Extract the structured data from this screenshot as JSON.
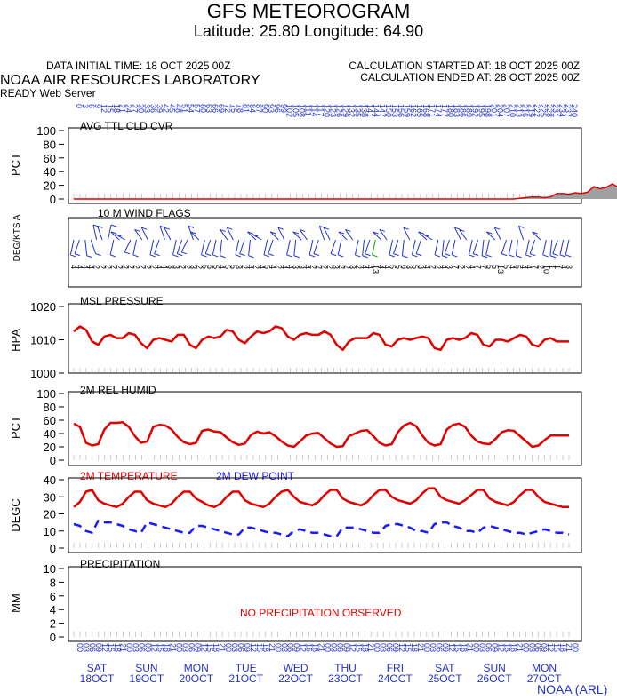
{
  "header": {
    "title": "GFS METEOROGRAM",
    "subtitle": "Latitude: 25.80 Longitude:  64.90",
    "data_initial_time": "DATA INITIAL TIME: 18 OCT 2025 00Z",
    "calc_started": "CALCULATION STARTED AT: 18 OCT 2025 00Z",
    "calc_ended": "CALCULATION ENDED AT: 28 OCT 2025 00Z",
    "lab": "NOAA AIR RESOURCES LABORATORY",
    "server": "READY Web Server",
    "credit": "NOAA (ARL)"
  },
  "colors": {
    "temp": "#e00000",
    "dew": "#1a1aff",
    "axis_text": "#2233cc"
  },
  "time_axis": {
    "hour_labels": [
      "0",
      "3",
      "6",
      "9",
      "12",
      "15",
      "18",
      "21",
      "24",
      "27",
      "30",
      "33",
      "36",
      "39",
      "42",
      "45",
      "48",
      "51",
      "54",
      "57",
      "60",
      "63",
      "66",
      "69",
      "72",
      "75",
      "78",
      "81",
      "84",
      "87",
      "90",
      "93",
      "96",
      "99",
      "102",
      "105",
      "108",
      "111",
      "114",
      "117",
      "120",
      "123",
      "126",
      "129",
      "132",
      "135",
      "138",
      "141",
      "144",
      "147",
      "150",
      "153",
      "156",
      "159",
      "162",
      "165",
      "168",
      "171",
      "174",
      "177",
      "180",
      "183",
      "186",
      "189",
      "192",
      "195",
      "198",
      "201",
      "204",
      "207",
      "210",
      "213",
      "216",
      "219",
      "222",
      "225",
      "228",
      "231",
      "234",
      "237",
      "240"
    ],
    "utc_labels": [
      "00",
      "03",
      "06",
      "09",
      "12",
      "15",
      "18",
      "21"
    ],
    "days": [
      {
        "dow": "SAT",
        "date": "18OCT"
      },
      {
        "dow": "SUN",
        "date": "19OCT"
      },
      {
        "dow": "MON",
        "date": "20OCT"
      },
      {
        "dow": "TUE",
        "date": "21OCT"
      },
      {
        "dow": "WED",
        "date": "22OCT"
      },
      {
        "dow": "THU",
        "date": "23OCT"
      },
      {
        "dow": "FRI",
        "date": "24OCT"
      },
      {
        "dow": "SAT",
        "date": "25OCT"
      },
      {
        "dow": "SUN",
        "date": "26OCT"
      },
      {
        "dow": "MON",
        "date": "27OCT"
      }
    ]
  },
  "chart_data": [
    {
      "type": "area",
      "title": "AVG TTL CLD CVR",
      "ylabel": "PCT",
      "ylim": [
        0,
        100
      ],
      "yticks": [
        "100",
        "80",
        "60",
        "40",
        "20",
        "0"
      ],
      "x_hours_step": 3,
      "values": [
        0,
        0,
        0,
        0,
        0,
        0,
        0,
        0,
        0,
        0,
        0,
        0,
        0,
        0,
        0,
        0,
        0,
        0,
        0,
        0,
        0,
        0,
        0,
        0,
        0,
        0,
        0,
        0,
        0,
        0,
        0,
        0,
        0,
        0,
        0,
        0,
        0,
        0,
        0,
        0,
        0,
        0,
        0,
        0,
        0,
        0,
        0,
        0,
        0,
        0,
        0,
        0,
        0,
        0,
        0,
        0,
        0,
        0,
        0,
        0,
        0,
        0,
        0,
        0,
        0,
        0,
        0,
        0,
        0,
        0,
        0,
        0,
        1,
        2,
        3,
        3,
        2,
        3,
        8,
        8,
        7,
        9,
        8,
        10,
        18,
        15,
        17,
        22,
        17
      ]
    },
    {
      "type": "wind_barbs",
      "title": "10 M  WIND FLAGS",
      "ylabel": "DEG/KTS  A",
      "speed_labels": [
        "4",
        "4",
        "4",
        "4",
        "2",
        "2",
        "2",
        "2",
        "2",
        "2",
        "2",
        "2",
        "2",
        "2",
        "2",
        "4",
        "4",
        "3",
        "3",
        "2",
        "2",
        "3",
        "2",
        "5",
        "5",
        "5",
        "4",
        "5",
        "5",
        "3",
        "2",
        "4",
        "2",
        "4",
        "5",
        "4",
        "2",
        "4",
        "4",
        "3",
        "3",
        "4",
        "2",
        "2",
        "2",
        "2",
        "3",
        "2",
        "2",
        "3",
        "2",
        "4",
        "4",
        "13",
        "4",
        "4",
        "5",
        "5",
        "6",
        "3",
        "5",
        "3",
        "4",
        "2",
        "2",
        "4",
        "3",
        "7",
        "2",
        "2",
        "4",
        "7",
        "7",
        "5",
        "5",
        "13",
        "5",
        "4",
        "5",
        "4",
        "4",
        "7",
        "2",
        "10",
        "1",
        "1",
        "4",
        "3"
      ]
    },
    {
      "type": "line",
      "title": "MSL PRESSURE",
      "ylabel": "HPA",
      "ylim": [
        1000,
        1020
      ],
      "yticks": [
        "1020",
        "1010",
        "1000"
      ],
      "x_hours_step": 3,
      "series": [
        {
          "values": [
            1012.5,
            1014,
            1013,
            1009.5,
            1008.5,
            1011,
            1011.5,
            1010.5,
            1010.5,
            1012,
            1011.5,
            1009,
            1007.5,
            1010,
            1010.5,
            1010,
            1009.5,
            1011.5,
            1011.5,
            1008.5,
            1007.5,
            1010,
            1011,
            1010.5,
            1011,
            1013,
            1012.5,
            1010,
            1009,
            1011,
            1012.5,
            1012,
            1012.5,
            1014,
            1013.5,
            1011,
            1010,
            1011.5,
            1012,
            1011.5,
            1011.5,
            1012.5,
            1011.5,
            1008.5,
            1007,
            1009.5,
            1010.5,
            1010.5,
            1010.5,
            1012,
            1011.5,
            1008.5,
            1008,
            1010,
            1010.5,
            1010,
            1010.5,
            1011,
            1010.5,
            1007.5,
            1007,
            1010,
            1010.5,
            1010,
            1010.5,
            1012,
            1011.5,
            1008.5,
            1008,
            1010,
            1010,
            1009.5,
            1010.5,
            1011.5,
            1011,
            1008.5,
            1008,
            1010,
            1010.5,
            1009.5,
            1009.5,
            1009.5
          ]
        }
      ]
    },
    {
      "type": "line",
      "title": "2M REL HUMID",
      "ylabel": "PCT",
      "ylim": [
        0,
        100
      ],
      "yticks": [
        "100",
        "80",
        "60",
        "40",
        "20",
        "0"
      ],
      "x_hours_step": 3,
      "series": [
        {
          "values": [
            55,
            50,
            26,
            22,
            24,
            46,
            56,
            56,
            57,
            50,
            36,
            26,
            28,
            50,
            53,
            52,
            46,
            35,
            27,
            24,
            26,
            44,
            46,
            43,
            42,
            34,
            27,
            23,
            25,
            38,
            43,
            40,
            42,
            36,
            28,
            22,
            20,
            28,
            37,
            40,
            41,
            33,
            25,
            20,
            21,
            36,
            40,
            44,
            45,
            36,
            26,
            22,
            24,
            42,
            52,
            56,
            51,
            37,
            26,
            22,
            24,
            46,
            53,
            55,
            50,
            37,
            28,
            25,
            24,
            32,
            42,
            45,
            44,
            36,
            28,
            20,
            22,
            30,
            37,
            37,
            37,
            37
          ]
        }
      ]
    },
    {
      "type": "line",
      "title": "",
      "ylabel": "DEGC",
      "ylim": [
        0,
        40
      ],
      "yticks": [
        "40",
        "30",
        "20",
        "10",
        "0"
      ],
      "x_hours_step": 3,
      "series": [
        {
          "name": "2M TEMPERATURE",
          "values": [
            24,
            27,
            33,
            34,
            28,
            26,
            25,
            24,
            26,
            30,
            33,
            33,
            28,
            26,
            25,
            24,
            26,
            30,
            33,
            33,
            29,
            27,
            25,
            24,
            26,
            30,
            33,
            33,
            28,
            26,
            25,
            24,
            26,
            30,
            33,
            34,
            30,
            27,
            26,
            25,
            27,
            31,
            34,
            34,
            29,
            27,
            26,
            25,
            27,
            31,
            34,
            34,
            30,
            28,
            27,
            26,
            28,
            32,
            35,
            35,
            30,
            28,
            27,
            26,
            28,
            31,
            34,
            34,
            29,
            27,
            26,
            25,
            27,
            31,
            34,
            34,
            30,
            27,
            26,
            25,
            24,
            24
          ]
        },
        {
          "name": "2M   DEW POINT",
          "values": [
            14,
            13,
            10,
            9,
            16,
            15,
            15,
            14,
            13,
            11,
            10,
            9,
            15,
            14,
            13,
            12,
            11,
            10,
            9,
            9,
            13,
            13,
            12,
            11,
            10,
            9,
            8,
            8,
            12,
            12,
            11,
            10,
            9,
            9,
            8,
            7,
            10,
            11,
            10,
            9,
            9,
            8,
            7,
            7,
            12,
            12,
            12,
            11,
            10,
            9,
            9,
            13,
            14,
            14,
            13,
            12,
            10,
            10,
            9,
            14,
            15,
            15,
            13,
            12,
            10,
            10,
            9,
            12,
            13,
            12,
            11,
            10,
            9,
            9,
            8,
            9,
            10,
            11,
            10,
            9,
            9,
            8
          ]
        }
      ]
    },
    {
      "type": "bar",
      "title": "PRECIPITATION",
      "ylabel": "MM",
      "ylim": [
        0,
        10
      ],
      "yticks": [
        "10",
        "8",
        "6",
        "4",
        "2",
        "0"
      ],
      "annotation": "NO PRECIPITATION OBSERVED",
      "values": []
    }
  ]
}
